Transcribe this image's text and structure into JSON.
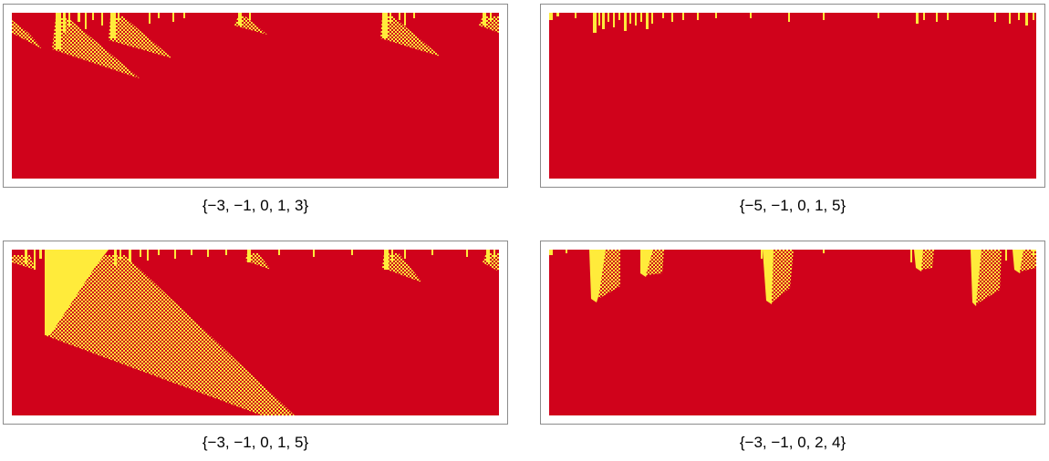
{
  "colors": {
    "background_cell": "#d0021b",
    "active_cell": "#ffeb3b",
    "mixed_cell": "#f0a500",
    "frame_border": "#8c8c8c"
  },
  "panels": [
    {
      "caption": "{−3, −1, 0, 1, 3}"
    },
    {
      "caption": "{−5, −1, 0, 1, 5}"
    },
    {
      "caption": "{−3, −1, 0, 1, 5}"
    },
    {
      "caption": "{−3, −1, 0, 2, 4}"
    }
  ]
}
